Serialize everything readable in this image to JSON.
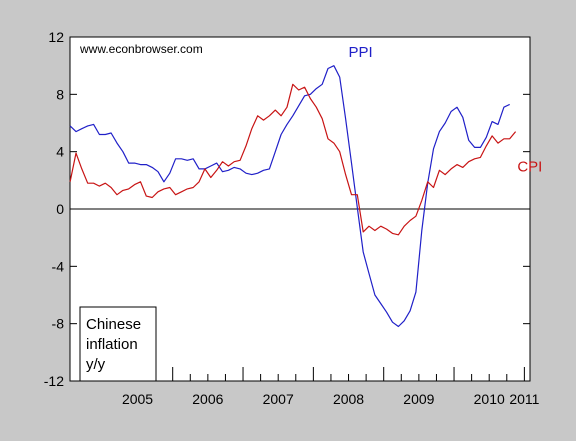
{
  "chart_data": {
    "type": "line",
    "watermark": "www.econbrowser.com",
    "annotation": [
      "Chinese",
      "inflation",
      "y/y"
    ],
    "ylim": [
      -12,
      12
    ],
    "yticks": [
      -12,
      -8,
      -4,
      0,
      4,
      8,
      12
    ],
    "xlim": [
      2004.54,
      2011.08
    ],
    "xtick_labels": [
      {
        "label": "2005",
        "x": 2005.5
      },
      {
        "label": "2006",
        "x": 2006.5
      },
      {
        "label": "2007",
        "x": 2007.5
      },
      {
        "label": "2008",
        "x": 2008.5
      },
      {
        "label": "2009",
        "x": 2009.5
      },
      {
        "label": "2010",
        "x": 2010.5
      },
      {
        "label": "2011",
        "x": 2011.0
      }
    ],
    "year_boundaries": [
      2005,
      2006,
      2007,
      2008,
      2009,
      2010,
      2011
    ],
    "x_start": "2004-07",
    "frequency": "monthly",
    "series": [
      {
        "name": "PPI",
        "color": "#2020c8",
        "values": [
          5.8,
          5.4,
          5.6,
          5.8,
          5.9,
          5.2,
          5.2,
          5.3,
          4.6,
          4.0,
          3.2,
          3.2,
          3.1,
          3.1,
          2.9,
          2.6,
          1.9,
          2.5,
          3.5,
          3.5,
          3.4,
          3.5,
          2.8,
          2.8,
          3.0,
          3.2,
          2.6,
          2.7,
          2.9,
          2.8,
          2.5,
          2.4,
          2.5,
          2.7,
          2.8,
          4.0,
          5.2,
          5.9,
          6.5,
          7.2,
          7.9,
          8.0,
          8.4,
          8.7,
          9.8,
          10.0,
          9.2,
          6.3,
          3.2,
          0.1,
          -3.0,
          -4.5,
          -6.0,
          -6.6,
          -7.2,
          -7.9,
          -8.2,
          -7.8,
          -7.1,
          -5.8,
          -1.5,
          1.8,
          4.2,
          5.4,
          6.0,
          6.8,
          7.1,
          6.4,
          4.8,
          4.3,
          4.3,
          5.0,
          6.1,
          5.9,
          7.1,
          7.3
        ]
      },
      {
        "name": "CPI",
        "color": "#c81414",
        "values": [
          1.9,
          3.9,
          2.8,
          1.8,
          1.8,
          1.6,
          1.8,
          1.5,
          1.0,
          1.3,
          1.4,
          1.7,
          1.9,
          0.9,
          0.8,
          1.2,
          1.4,
          1.5,
          1.0,
          1.2,
          1.4,
          1.5,
          1.9,
          2.8,
          2.2,
          2.7,
          3.3,
          3.0,
          3.3,
          3.4,
          4.4,
          5.6,
          6.5,
          6.2,
          6.5,
          6.9,
          6.5,
          7.1,
          8.7,
          8.3,
          8.5,
          7.7,
          7.1,
          6.3,
          4.9,
          4.6,
          4.0,
          2.4,
          1.0,
          1.0,
          -1.6,
          -1.2,
          -1.5,
          -1.2,
          -1.4,
          -1.7,
          -1.8,
          -1.2,
          -0.8,
          -0.5,
          0.6,
          1.9,
          1.5,
          2.7,
          2.4,
          2.8,
          3.1,
          2.9,
          3.3,
          3.5,
          3.6,
          4.4,
          5.1,
          4.6,
          4.9,
          4.9,
          5.4
        ]
      }
    ],
    "series_labels": [
      {
        "series": "PPI",
        "x": 2008.5,
        "y": 10.6
      },
      {
        "series": "CPI",
        "x": 2010.9,
        "y": 2.6
      }
    ]
  }
}
